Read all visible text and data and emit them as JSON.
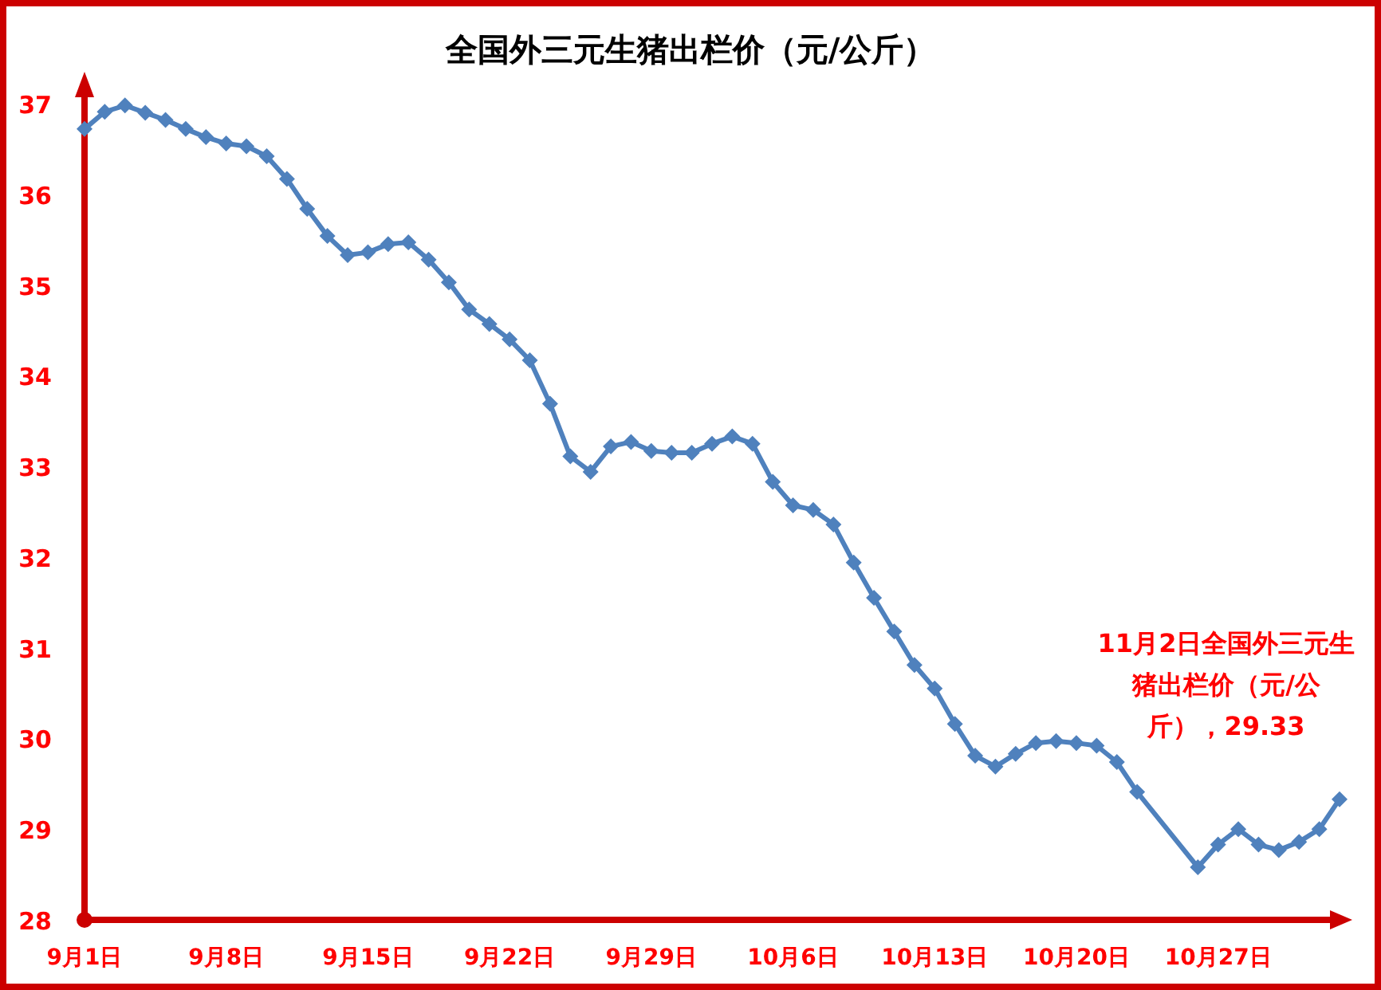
{
  "chart_data": {
    "type": "line",
    "title": "全国外三元生猪出栏价（元/公斤）",
    "x": [
      "--09-01",
      "--09-02",
      "--09-03",
      "--09-04",
      "--09-05",
      "--09-06",
      "--09-07",
      "--09-08",
      "--09-09",
      "--09-10",
      "--09-11",
      "--09-12",
      "--09-13",
      "--09-14",
      "--09-15",
      "--09-16",
      "--09-17",
      "--09-18",
      "--09-19",
      "--09-20",
      "--09-21",
      "--09-22",
      "--09-23",
      "--09-24",
      "--09-25",
      "--09-26",
      "--09-27",
      "--09-28",
      "--09-29",
      "--09-30",
      "--10-01",
      "--10-02",
      "--10-03",
      "--10-04",
      "--10-05",
      "--10-06",
      "--10-07",
      "--10-08",
      "--10-09",
      "--10-10",
      "--10-11",
      "--10-12",
      "--10-13",
      "--10-14",
      "--10-15",
      "--10-16",
      "--10-17",
      "--10-18",
      "--10-19",
      "--10-20",
      "--10-21",
      "--10-22",
      "--10-23",
      "--10-26",
      "--10-27",
      "--10-28",
      "--10-29",
      "--10-30",
      "--10-31",
      "--11-01",
      "--11-02"
    ],
    "series": [
      {
        "color": "#4f81bd",
        "values": [
          36.72,
          36.91,
          36.98,
          36.9,
          36.82,
          36.72,
          36.63,
          36.56,
          36.53,
          36.42,
          36.17,
          35.84,
          35.54,
          35.33,
          35.36,
          35.45,
          35.47,
          35.28,
          35.03,
          34.73,
          34.57,
          34.4,
          34.17,
          33.69,
          33.11,
          32.94,
          33.22,
          33.27,
          33.17,
          33.15,
          33.15,
          33.25,
          33.33,
          33.25,
          32.83,
          32.57,
          32.52,
          32.36,
          31.94,
          31.55,
          31.18,
          30.81,
          30.55,
          30.16,
          29.81,
          29.69,
          29.83,
          29.95,
          29.97,
          29.95,
          29.92,
          29.74,
          29.41,
          28.58,
          28.83,
          29.0,
          28.83,
          28.77,
          28.86,
          29.0,
          29.33
        ]
      }
    ],
    "xlim": [
      "--09-01",
      "--11-02"
    ],
    "xticks": [
      {
        "value": "--09-01",
        "label": "9月1日"
      },
      {
        "value": "--09-08",
        "label": "9月8日"
      },
      {
        "value": "--09-15",
        "label": "9月15日"
      },
      {
        "value": "--09-22",
        "label": "9月22日"
      },
      {
        "value": "--09-29",
        "label": "9月29日"
      },
      {
        "value": "--10-06",
        "label": "10月6日"
      },
      {
        "value": "--10-13",
        "label": "10月13日"
      },
      {
        "value": "--10-20",
        "label": "10月20日"
      },
      {
        "value": "--10-27",
        "label": "10月27日"
      }
    ],
    "ylim": [
      28,
      37
    ],
    "yticks": [
      28,
      29,
      30,
      31,
      32,
      33,
      34,
      35,
      36,
      37
    ],
    "marker": "diamond",
    "line_style": "solid",
    "annotations": [
      {
        "text": "11月2日全国外三元生猪出栏价（元/公斤），29.33",
        "x": "--11-02",
        "y": 29.33
      }
    ]
  }
}
